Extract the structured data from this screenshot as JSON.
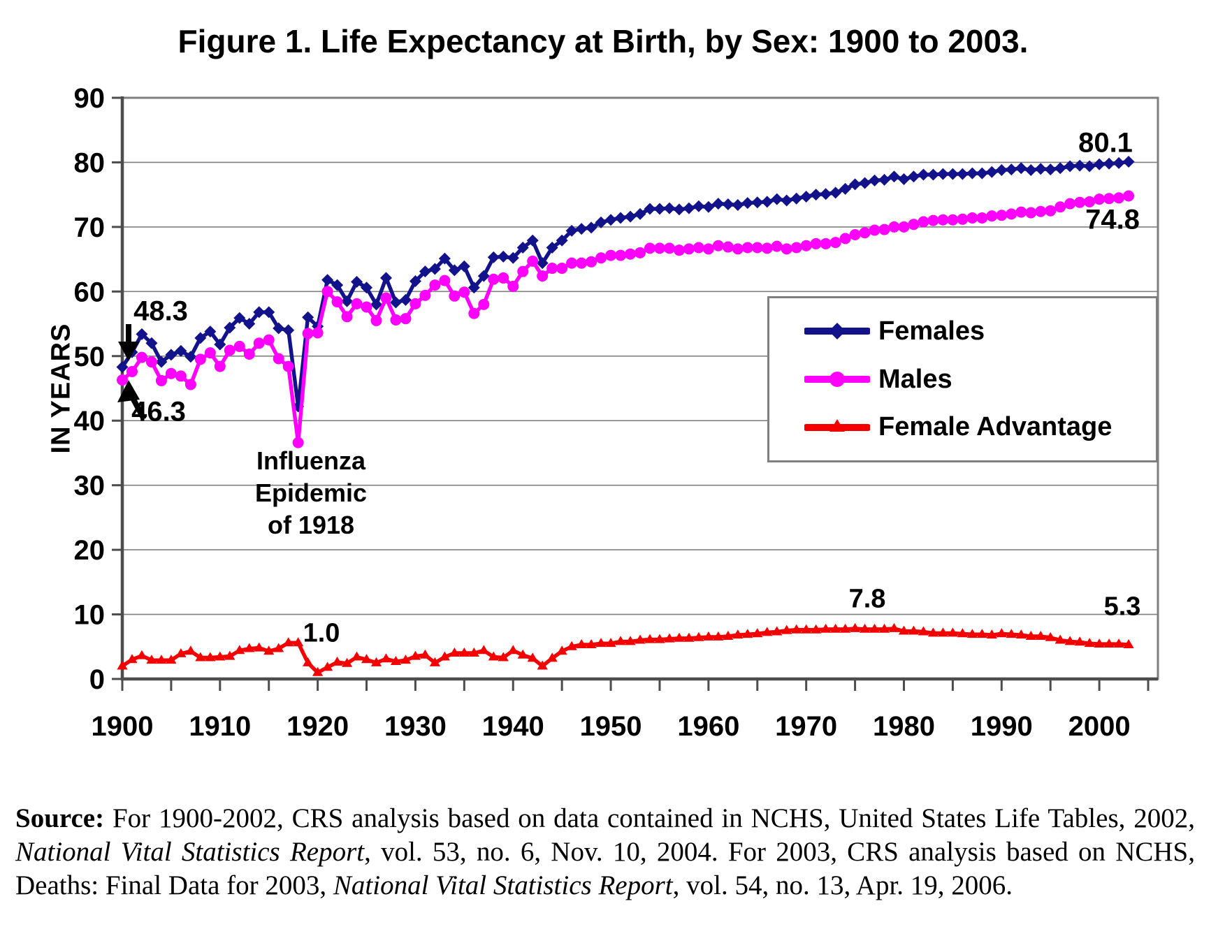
{
  "title": "Figure 1. Life Expectancy at Birth, by Sex: 1900 to 2003.",
  "y_axis_label": "IN YEARS",
  "legend": {
    "items": [
      {
        "label": "Females",
        "color": "#12128A",
        "marker": "diamond"
      },
      {
        "label": "Males",
        "color": "#FF00FF",
        "marker": "circle"
      },
      {
        "label": "Female Advantage",
        "color": "#F40000",
        "marker": "triangle"
      }
    ]
  },
  "annotations": {
    "start_female": "48.3",
    "start_male": "46.3",
    "end_female": "80.1",
    "end_male": "74.8",
    "advantage_1920": "1.0",
    "advantage_peak": "7.8",
    "advantage_end": "5.3",
    "influenza": {
      "line1": "Influenza",
      "line2": "Epidemic",
      "line3": "of 1918"
    }
  },
  "source": {
    "segments": [
      {
        "t": "Source:",
        "b": true
      },
      {
        "t": "  For 1900-2002, CRS analysis based on data contained in NCHS, United States Life Tables, 2002, "
      },
      {
        "t": "National Vital Statistics Report",
        "i": true
      },
      {
        "t": ", vol. 53, no. 6, Nov. 10, 2004. For 2003, CRS analysis based on NCHS, Deaths: Final Data for 2003, "
      },
      {
        "t": "National Vital Statistics Report",
        "i": true
      },
      {
        "t": ", vol. 54, no. 13, Apr. 19, 2006."
      }
    ]
  },
  "chart_data": {
    "type": "line",
    "title": "Figure 1. Life Expectancy at Birth, by Sex: 1900 to 2003.",
    "xlabel": "",
    "ylabel": "IN YEARS",
    "xlim": [
      1900,
      2006
    ],
    "ylim": [
      0,
      90
    ],
    "yticks": [
      0,
      10,
      20,
      30,
      40,
      50,
      60,
      70,
      80,
      90
    ],
    "xticks": [
      1900,
      1910,
      1920,
      1930,
      1940,
      1950,
      1960,
      1970,
      1980,
      1990,
      2000
    ],
    "xtick_minor_step": 5,
    "grid": true,
    "legend_position": "inside-middle-right",
    "x": [
      1900,
      1901,
      1902,
      1903,
      1904,
      1905,
      1906,
      1907,
      1908,
      1909,
      1910,
      1911,
      1912,
      1913,
      1914,
      1915,
      1916,
      1917,
      1918,
      1919,
      1920,
      1921,
      1922,
      1923,
      1924,
      1925,
      1926,
      1927,
      1928,
      1929,
      1930,
      1931,
      1932,
      1933,
      1934,
      1935,
      1936,
      1937,
      1938,
      1939,
      1940,
      1941,
      1942,
      1943,
      1944,
      1945,
      1946,
      1947,
      1948,
      1949,
      1950,
      1951,
      1952,
      1953,
      1954,
      1955,
      1956,
      1957,
      1958,
      1959,
      1960,
      1961,
      1962,
      1963,
      1964,
      1965,
      1966,
      1967,
      1968,
      1969,
      1970,
      1971,
      1972,
      1973,
      1974,
      1975,
      1976,
      1977,
      1978,
      1979,
      1980,
      1981,
      1982,
      1983,
      1984,
      1985,
      1986,
      1987,
      1988,
      1989,
      1990,
      1991,
      1992,
      1993,
      1994,
      1995,
      1996,
      1997,
      1998,
      1999,
      2000,
      2001,
      2002,
      2003
    ],
    "series": [
      {
        "name": "Females",
        "color": "#12128A",
        "marker": "diamond",
        "values": [
          48.3,
          50.6,
          53.4,
          52.0,
          49.1,
          50.2,
          50.8,
          49.9,
          52.8,
          53.8,
          51.8,
          54.4,
          55.9,
          55.0,
          56.8,
          56.8,
          54.3,
          54.0,
          42.2,
          56.0,
          54.6,
          61.8,
          61.0,
          58.5,
          61.5,
          60.6,
          58.0,
          62.1,
          58.3,
          58.7,
          61.6,
          63.1,
          63.5,
          65.1,
          63.3,
          63.9,
          60.6,
          62.4,
          65.3,
          65.4,
          65.2,
          66.8,
          67.9,
          64.4,
          66.8,
          67.9,
          69.4,
          69.7,
          69.9,
          70.7,
          71.1,
          71.4,
          71.6,
          72.0,
          72.8,
          72.8,
          72.9,
          72.7,
          72.9,
          73.2,
          73.1,
          73.6,
          73.5,
          73.4,
          73.7,
          73.8,
          73.9,
          74.3,
          74.1,
          74.4,
          74.7,
          75.0,
          75.1,
          75.3,
          75.9,
          76.6,
          76.8,
          77.2,
          77.3,
          77.8,
          77.4,
          77.8,
          78.1,
          78.1,
          78.2,
          78.2,
          78.2,
          78.3,
          78.3,
          78.5,
          78.8,
          78.9,
          79.1,
          78.8,
          79.0,
          78.9,
          79.1,
          79.4,
          79.5,
          79.4,
          79.7,
          79.8,
          79.9,
          80.1
        ]
      },
      {
        "name": "Males",
        "color": "#FF00FF",
        "marker": "circle",
        "values": [
          46.3,
          47.6,
          49.8,
          49.1,
          46.2,
          47.3,
          46.9,
          45.6,
          49.5,
          50.5,
          48.4,
          50.9,
          51.5,
          50.3,
          52.0,
          52.5,
          49.6,
          48.4,
          36.6,
          53.5,
          53.6,
          60.0,
          58.4,
          56.1,
          58.1,
          57.6,
          55.5,
          59.0,
          55.6,
          55.8,
          58.1,
          59.4,
          61.0,
          61.7,
          59.3,
          59.9,
          56.6,
          58.0,
          61.9,
          62.1,
          60.8,
          63.1,
          64.7,
          62.4,
          63.6,
          63.6,
          64.4,
          64.4,
          64.6,
          65.2,
          65.6,
          65.6,
          65.8,
          66.0,
          66.7,
          66.7,
          66.7,
          66.4,
          66.6,
          66.8,
          66.6,
          67.1,
          66.9,
          66.6,
          66.8,
          66.8,
          66.7,
          67.0,
          66.6,
          66.8,
          67.1,
          67.4,
          67.4,
          67.6,
          68.2,
          68.8,
          69.1,
          69.5,
          69.6,
          70.0,
          70.0,
          70.4,
          70.8,
          71.0,
          71.1,
          71.1,
          71.2,
          71.4,
          71.4,
          71.7,
          71.8,
          72.0,
          72.3,
          72.2,
          72.4,
          72.5,
          73.1,
          73.6,
          73.8,
          73.9,
          74.3,
          74.4,
          74.5,
          74.8
        ]
      },
      {
        "name": "Female Advantage",
        "color": "#F40000",
        "marker": "triangle",
        "values": [
          2.0,
          3.0,
          3.6,
          2.9,
          2.9,
          2.9,
          3.9,
          4.3,
          3.3,
          3.3,
          3.4,
          3.5,
          4.4,
          4.7,
          4.8,
          4.3,
          4.7,
          5.6,
          5.6,
          2.5,
          1.0,
          1.8,
          2.6,
          2.4,
          3.4,
          3.0,
          2.5,
          3.1,
          2.7,
          2.9,
          3.5,
          3.7,
          2.5,
          3.4,
          4.0,
          4.0,
          4.0,
          4.4,
          3.4,
          3.3,
          4.4,
          3.7,
          3.2,
          2.0,
          3.2,
          4.3,
          5.0,
          5.3,
          5.3,
          5.5,
          5.5,
          5.8,
          5.8,
          6.0,
          6.1,
          6.1,
          6.2,
          6.3,
          6.3,
          6.4,
          6.5,
          6.5,
          6.6,
          6.8,
          6.9,
          7.0,
          7.2,
          7.3,
          7.5,
          7.6,
          7.6,
          7.6,
          7.7,
          7.7,
          7.7,
          7.8,
          7.7,
          7.7,
          7.7,
          7.8,
          7.4,
          7.4,
          7.3,
          7.1,
          7.1,
          7.1,
          7.0,
          6.9,
          6.9,
          6.8,
          7.0,
          6.9,
          6.8,
          6.6,
          6.6,
          6.4,
          6.0,
          5.8,
          5.7,
          5.5,
          5.4,
          5.4,
          5.4,
          5.3
        ]
      }
    ]
  }
}
